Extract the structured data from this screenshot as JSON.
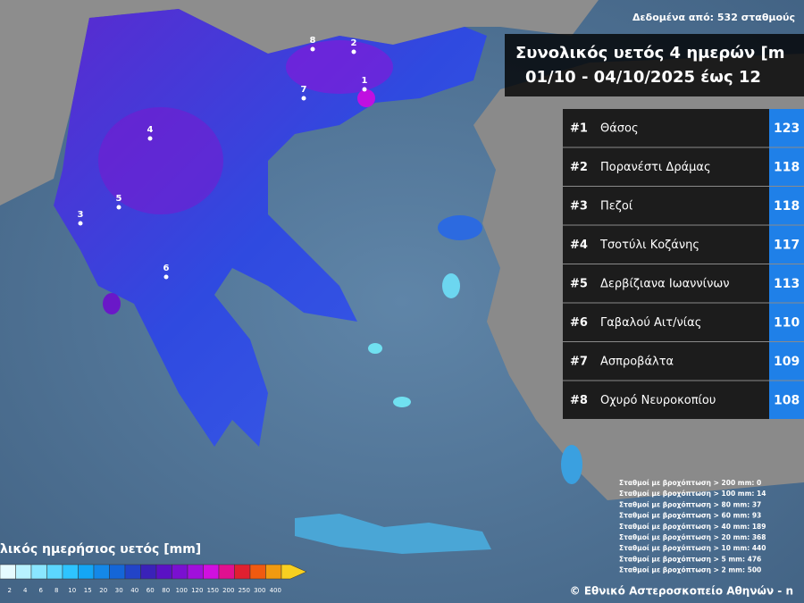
{
  "header": {
    "source": "Δεδομένα από: 532 σταθμούς",
    "title": "Συνολικός υετός 4 ημερών [m",
    "period": "01/10 - 04/10/2025 έως 12"
  },
  "ranking": {
    "rows": [
      [
        "#1",
        "Θάσος",
        "123"
      ],
      [
        "#2",
        "Πορανέστι Δράμας",
        "118"
      ],
      [
        "#3",
        "Πεζοί",
        "118"
      ],
      [
        "#4",
        "Τσοτύλι Κοζάνης",
        "117"
      ],
      [
        "#5",
        "Δερβίζιανα Ιωαννίνων",
        "113"
      ],
      [
        "#6",
        "Γαβαλού Αιτ/νίας",
        "110"
      ],
      [
        "#7",
        "Ασπροβάλτα",
        "109"
      ],
      [
        "#8",
        "Οχυρό Νευροκοπίου",
        "108"
      ]
    ]
  },
  "markers": [
    "1",
    "2",
    "3",
    "4",
    "5",
    "6",
    "7",
    "8"
  ],
  "legend": {
    "title": "λικός ημερήσιος υετός [mm]",
    "labels": [
      2,
      4,
      6,
      8,
      10,
      15,
      20,
      30,
      40,
      60,
      80,
      100,
      120,
      150,
      200,
      250,
      300,
      400
    ],
    "colors": [
      "#e6fbff",
      "#b8f2ff",
      "#8ae6ff",
      "#5cd6ff",
      "#2ec4ff",
      "#14a6f5",
      "#1488e8",
      "#1466d8",
      "#2244c8",
      "#3a22b8",
      "#5a12c4",
      "#7a10d0",
      "#a010dc",
      "#d010e0",
      "#e01090",
      "#e02030",
      "#f05a10",
      "#f09a10",
      "#f8d020"
    ]
  },
  "stats": [
    "Σταθμοί με βροχόπτωση > 200 mm: 0",
    "Σταθμοί με βροχόπτωση > 100 mm: 14",
    "Σταθμοί με βροχόπτωση > 80 mm: 37",
    "Σταθμοί με βροχόπτωση > 60 mm: 93",
    "Σταθμοί με βροχόπτωση > 40 mm: 189",
    "Σταθμοί με βροχόπτωση > 20 mm: 368",
    "Σταθμοί με βροχόπτωση > 10 mm: 440",
    "Σταθμοί με βροχόπτωση > 5 mm: 476",
    "Σταθμοί με βροχόπτωση > 2 mm: 500"
  ],
  "credit": "© Εθνικό Αστεροσκοπείο Αθηνών - n"
}
